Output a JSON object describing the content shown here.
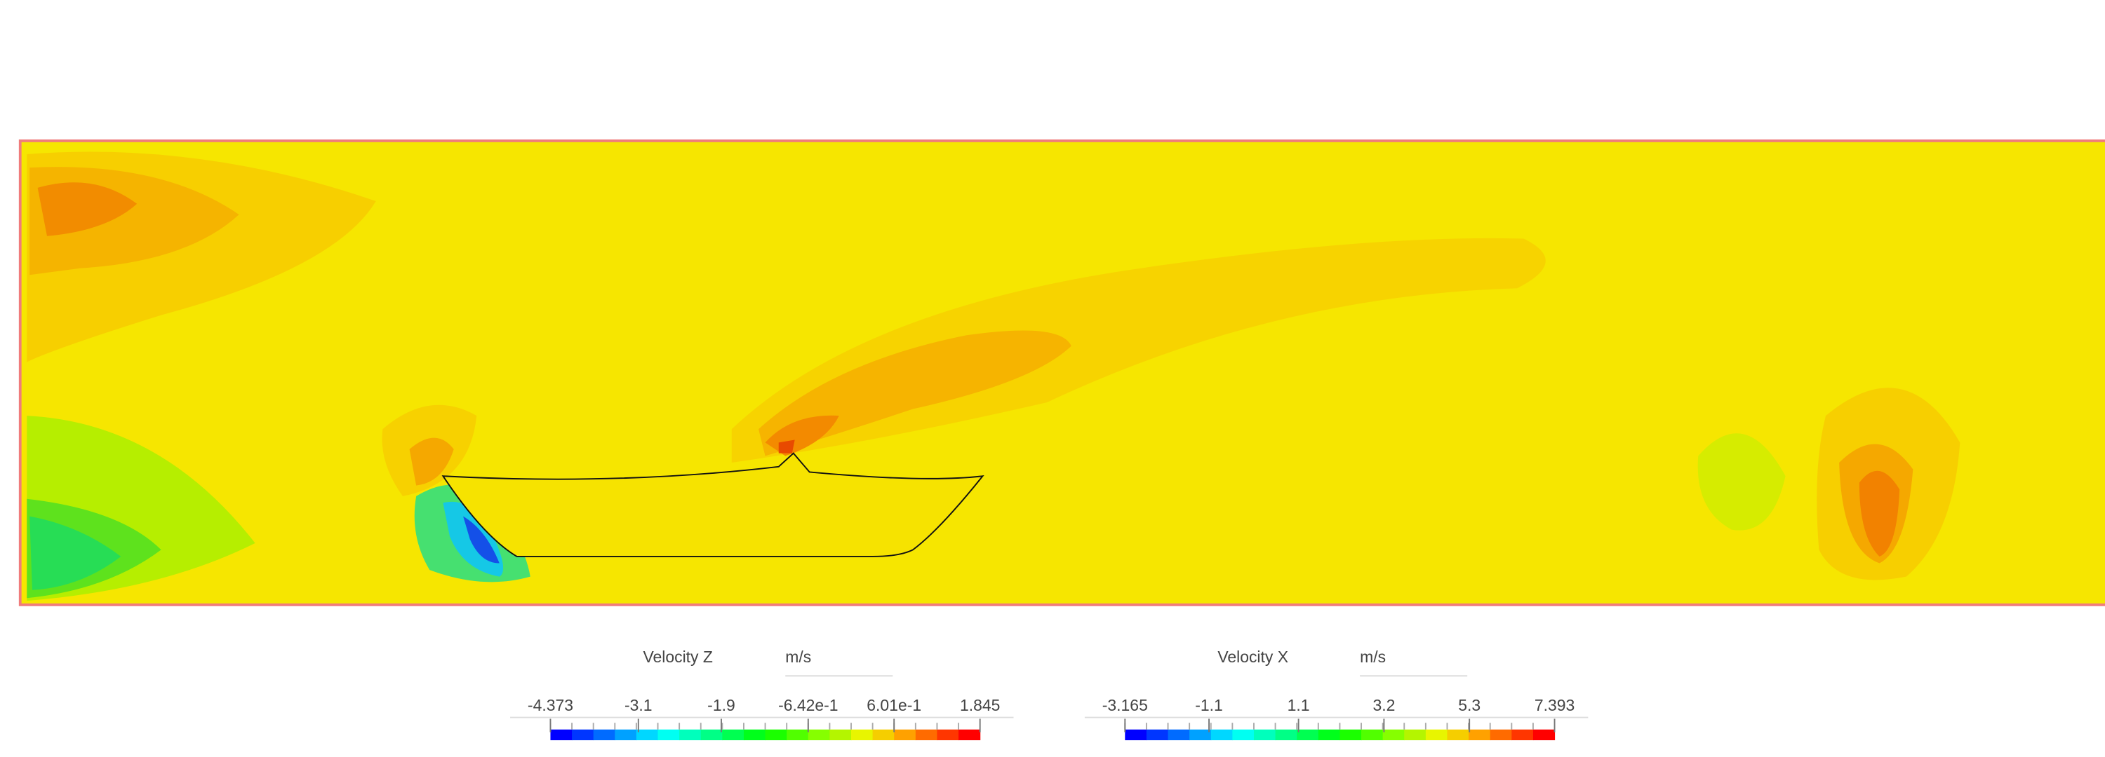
{
  "legends": [
    {
      "title": "Velocity Z",
      "unit": "m/s",
      "range": [
        -4.373,
        1.845
      ],
      "ticks": [
        -4.373,
        -3.1,
        -1.9,
        {
          "value": -0.642,
          "label": "-6.42e-1"
        },
        {
          "value": 0.601,
          "label": "6.01e-1"
        },
        1.845
      ]
    },
    {
      "title": "Velocity X",
      "unit": "m/s",
      "range": [
        -3.165,
        7.393
      ],
      "ticks": [
        -3.165,
        -1.1,
        1.1,
        3.2,
        5.3,
        7.393
      ]
    }
  ]
}
